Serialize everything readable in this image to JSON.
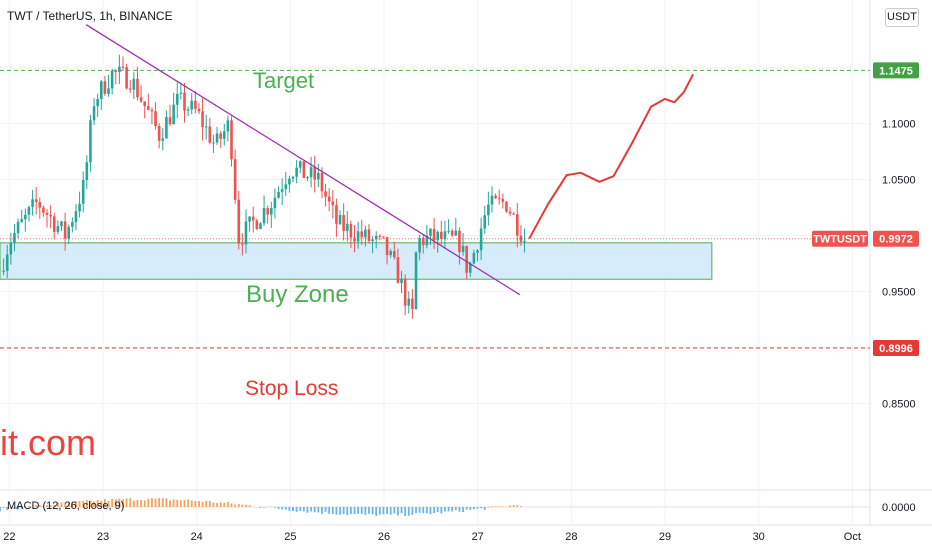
{
  "header": {
    "symbol_line": "TWT / TetherUS, 1h, BINANCE",
    "currency_button": "USDT"
  },
  "watermark": "it.com",
  "indicator": {
    "label": "MACD (12, 26, close, 9)"
  },
  "annotations": {
    "target": "Target",
    "buy_zone": "Buy Zone",
    "stop_loss": "Stop Loss"
  },
  "price_tags": {
    "target": "1.1475",
    "current_symbol": "TWTUSDT",
    "current": "0.9972",
    "stop_loss": "0.8996"
  },
  "colors": {
    "up": "#26a69a",
    "down": "#ef5350",
    "target": "#4caf50",
    "stop": "#e53935",
    "zone_fill": "#d6ecfb",
    "zone_border": "#4caf50",
    "trendline": "#9c27b0",
    "projection": "#e53935"
  },
  "chart_data": {
    "type": "candlestick",
    "ylim": [
      0.8085,
      1.1916
    ],
    "x_ticks": [
      "22",
      "23",
      "24",
      "25",
      "26",
      "27",
      "28",
      "29",
      "30",
      "Oct"
    ],
    "y_ticks": [
      "1.1000",
      "1.0500",
      "0.9500",
      "0.8500"
    ],
    "macd_ticks": [
      "0.0000"
    ],
    "levels": {
      "target": 1.1475,
      "stop_loss": 0.8996,
      "current": 0.9972
    },
    "buy_zone": [
      0.961,
      0.9935
    ],
    "trendline": [
      {
        "x": 22.82,
        "y": 1.1883
      },
      {
        "x": 27.45,
        "y": 0.9472
      }
    ],
    "projection": [
      {
        "x": 27.55,
        "y": 0.9972
      },
      {
        "x": 27.75,
        "y": 1.028
      },
      {
        "x": 27.95,
        "y": 1.054
      },
      {
        "x": 28.1,
        "y": 1.056
      },
      {
        "x": 28.3,
        "y": 1.048
      },
      {
        "x": 28.45,
        "y": 1.053
      },
      {
        "x": 28.65,
        "y": 1.083
      },
      {
        "x": 28.85,
        "y": 1.115
      },
      {
        "x": 29.0,
        "y": 1.122
      },
      {
        "x": 29.1,
        "y": 1.119
      },
      {
        "x": 29.2,
        "y": 1.128
      },
      {
        "x": 29.3,
        "y": 1.144
      }
    ],
    "keypoints": [
      {
        "x": 21.9,
        "y": 0.968
      },
      {
        "x": 22.0,
        "y": 0.995
      },
      {
        "x": 22.3,
        "y": 1.03
      },
      {
        "x": 22.6,
        "y": 1.0
      },
      {
        "x": 22.8,
        "y": 1.045
      },
      {
        "x": 22.9,
        "y": 1.12
      },
      {
        "x": 23.1,
        "y": 1.145
      },
      {
        "x": 23.3,
        "y": 1.14
      },
      {
        "x": 23.6,
        "y": 1.09
      },
      {
        "x": 23.8,
        "y": 1.12
      },
      {
        "x": 24.0,
        "y": 1.11
      },
      {
        "x": 24.2,
        "y": 1.08
      },
      {
        "x": 24.35,
        "y": 1.1
      },
      {
        "x": 24.45,
        "y": 0.997
      },
      {
        "x": 24.8,
        "y": 1.03
      },
      {
        "x": 25.0,
        "y": 1.06
      },
      {
        "x": 25.3,
        "y": 1.05
      },
      {
        "x": 25.5,
        "y": 1.01
      },
      {
        "x": 25.8,
        "y": 0.998
      },
      {
        "x": 26.0,
        "y": 0.99
      },
      {
        "x": 26.15,
        "y": 0.965
      },
      {
        "x": 26.3,
        "y": 0.925
      },
      {
        "x": 26.35,
        "y": 0.995
      },
      {
        "x": 26.5,
        "y": 0.998
      },
      {
        "x": 26.8,
        "y": 0.995
      },
      {
        "x": 26.9,
        "y": 0.968
      },
      {
        "x": 27.1,
        "y": 1.025
      },
      {
        "x": 27.3,
        "y": 1.03
      },
      {
        "x": 27.5,
        "y": 0.9972
      }
    ]
  }
}
